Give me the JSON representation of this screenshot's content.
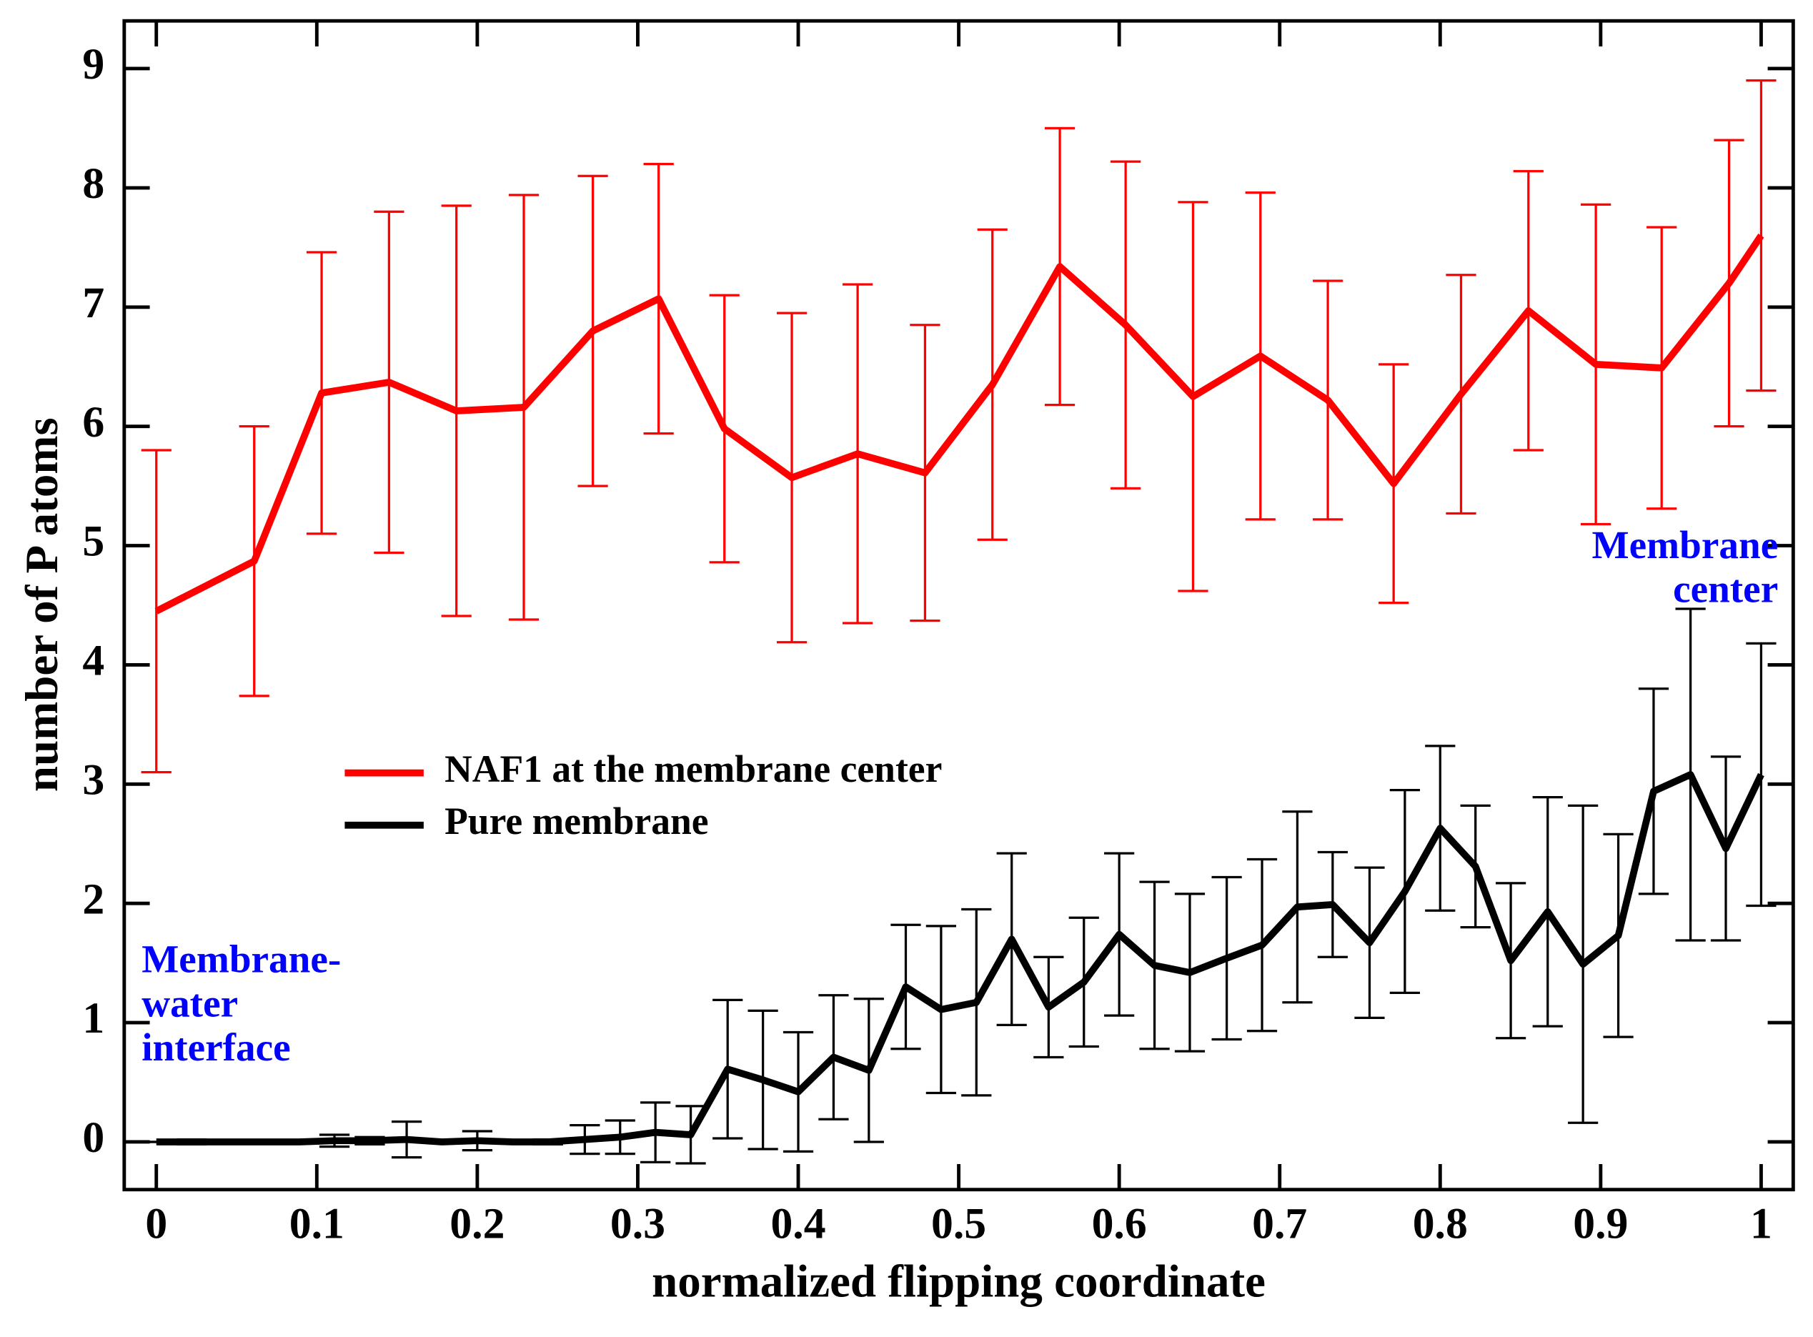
{
  "chart_data": {
    "type": "line",
    "xlabel": "normalized flipping coordinate",
    "ylabel": "number of P atoms",
    "xlim": [
      -0.02,
      1.02
    ],
    "ylim": [
      -0.4,
      9.4
    ],
    "xticks": [
      0,
      0.1,
      0.2,
      0.3,
      0.4,
      0.5,
      0.6,
      0.7,
      0.8,
      0.9,
      1
    ],
    "yticks": [
      0,
      1,
      2,
      3,
      4,
      5,
      6,
      7,
      8,
      9
    ],
    "legend": "center-left",
    "series": [
      {
        "name": "NAF1 at the membrane center",
        "color": "#ff0000",
        "x": [
          0,
          0.061,
          0.103,
          0.145,
          0.187,
          0.229,
          0.272,
          0.313,
          0.354,
          0.396,
          0.437,
          0.479,
          0.521,
          0.563,
          0.604,
          0.646,
          0.688,
          0.73,
          0.771,
          0.813,
          0.855,
          0.897,
          0.938,
          0.98,
          1
        ],
        "values": [
          4.45,
          4.87,
          6.28,
          6.37,
          6.13,
          6.16,
          6.8,
          7.07,
          5.98,
          5.57,
          5.77,
          5.61,
          6.35,
          7.34,
          6.85,
          6.25,
          6.59,
          6.22,
          5.52,
          6.27,
          6.97,
          6.52,
          6.49,
          7.2,
          7.6
        ],
        "errors": [
          1.35,
          1.13,
          1.18,
          1.43,
          1.72,
          1.78,
          1.3,
          1.13,
          1.12,
          1.38,
          1.42,
          1.24,
          1.3,
          1.16,
          1.37,
          1.63,
          1.37,
          1.0,
          1.0,
          1.0,
          1.17,
          1.34,
          1.18,
          1.2,
          1.3
        ]
      },
      {
        "name": "Pure membrane",
        "color": "#000000",
        "x": [
          0,
          0.022,
          0.044,
          0.067,
          0.089,
          0.111,
          0.133,
          0.156,
          0.178,
          0.2,
          0.222,
          0.244,
          0.267,
          0.289,
          0.311,
          0.333,
          0.356,
          0.378,
          0.4,
          0.422,
          0.444,
          0.467,
          0.489,
          0.511,
          0.533,
          0.556,
          0.578,
          0.6,
          0.622,
          0.644,
          0.667,
          0.689,
          0.711,
          0.733,
          0.756,
          0.778,
          0.8,
          0.822,
          0.844,
          0.867,
          0.889,
          0.911,
          0.933,
          0.956,
          0.978,
          1
        ],
        "values": [
          0,
          0,
          0,
          0,
          0,
          0.01,
          0.01,
          0.02,
          0,
          0.01,
          0,
          0,
          0.02,
          0.04,
          0.08,
          0.06,
          0.61,
          0.52,
          0.42,
          0.71,
          0.6,
          1.3,
          1.11,
          1.17,
          1.7,
          1.13,
          1.34,
          1.74,
          1.48,
          1.42,
          1.54,
          1.65,
          1.97,
          1.99,
          1.67,
          2.1,
          2.63,
          2.31,
          1.52,
          1.93,
          1.49,
          1.73,
          2.94,
          3.08,
          2.46,
          3.08
        ],
        "errors": [
          0,
          0.02,
          0,
          0,
          0,
          0.05,
          0.03,
          0.15,
          0,
          0.08,
          0,
          0.02,
          0.12,
          0.14,
          0.25,
          0.24,
          0.58,
          0.58,
          0.5,
          0.52,
          0.6,
          0.52,
          0.7,
          0.78,
          0.72,
          0.42,
          0.54,
          0.68,
          0.7,
          0.66,
          0.68,
          0.72,
          0.8,
          0.44,
          0.63,
          0.85,
          0.69,
          0.51,
          0.65,
          0.96,
          1.33,
          0.85,
          0.86,
          1.39,
          0.77,
          1.1
        ]
      }
    ],
    "annotations": [
      {
        "lines": [
          "Membrane-",
          "water",
          "interface"
        ],
        "color": "#0000ff"
      },
      {
        "lines": [
          "Membrane",
          "center"
        ],
        "color": "#0000ff"
      }
    ]
  }
}
